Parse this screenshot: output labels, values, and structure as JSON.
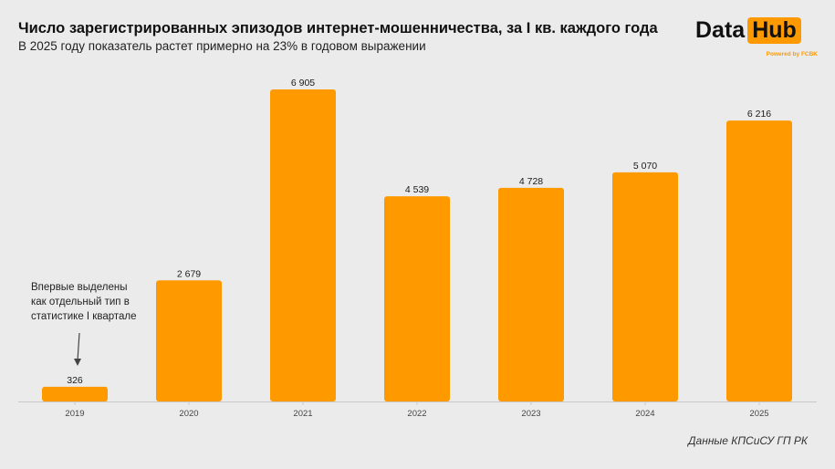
{
  "header": {
    "title": "Число зарегистрированных эпизодов интернет-мошенничества, за I кв. каждого года",
    "subtitle": "В 2025 году показатель растет примерно на 23% в годовом выражении"
  },
  "logo": {
    "data": "Data",
    "hub": "Hub",
    "powered": "Powered by FCBK"
  },
  "annotation": {
    "line1": "Впервые выделены",
    "line2": "как отдельный тип в",
    "line3": "статистике I квартале"
  },
  "source": "Данные КПСиСУ ГП РК",
  "colors": {
    "bar": "#ff9900",
    "background": "#ebebeb",
    "axis": "#c8c8c8"
  },
  "chart_data": {
    "type": "bar",
    "categories": [
      "2019",
      "2020",
      "2021",
      "2022",
      "2023",
      "2024",
      "2025"
    ],
    "values": [
      326,
      2679,
      6905,
      4539,
      4728,
      5070,
      6216
    ],
    "value_labels": [
      "326",
      "2 679",
      "6 905",
      "4 539",
      "4 728",
      "5 070",
      "6 216"
    ],
    "title": "Число зарегистрированных эпизодов интернет-мошенничества, за I кв. каждого года",
    "subtitle": "В 2025 году показатель растет примерно на 23% в годовом выражении",
    "xlabel": "",
    "ylabel": "",
    "ylim": [
      0,
      6905
    ],
    "grid": false,
    "legend": "none"
  }
}
